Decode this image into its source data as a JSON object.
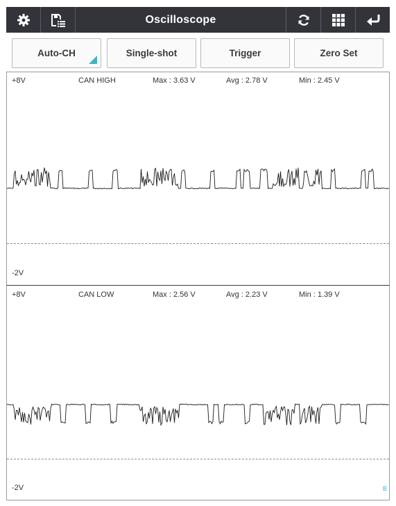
{
  "header": {
    "title": "Oscilloscope",
    "left_icons": [
      "gear-icon",
      "save-list-icon"
    ],
    "right_icons": [
      "refresh-icon",
      "grid-icon",
      "back-icon"
    ],
    "bar_color": "#33343a"
  },
  "actions": {
    "auto_ch": "Auto-CH",
    "single_shot": "Single-shot",
    "trigger": "Trigger",
    "zero_set": "Zero Set",
    "accent": "#3fb3c7"
  },
  "channels": [
    {
      "top_range": "+8V",
      "name": "CAN HIGH",
      "max": "Max : 3.63 V",
      "avg": "Avg : 2.78 V",
      "min": "Min : 2.45 V",
      "bottom_range": "-2V"
    },
    {
      "top_range": "+8V",
      "name": "CAN LOW",
      "max": "Max : 2.56 V",
      "avg": "Avg : 2.23 V",
      "min": "Min : 1.39 V",
      "bottom_range": "-2V",
      "marker": "B"
    }
  ]
}
